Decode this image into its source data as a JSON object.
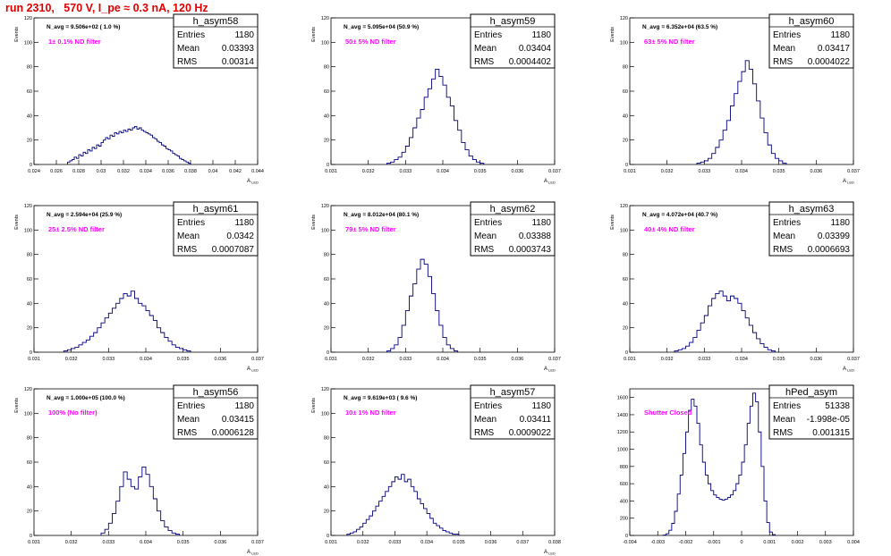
{
  "page_title": "run 2310,   570 V, I_pe ≈ 0.3 nA, 120 Hz",
  "stats_labels": {
    "entries": "Entries",
    "mean": "Mean",
    "rms": "RMS"
  },
  "colors": {
    "title": "#e00000",
    "histogram_line": "#000080",
    "annotation": "#ff00ff",
    "axis": "#000000"
  },
  "chart_data": [
    {
      "type": "histogram",
      "name": "h_asym58",
      "entries": "1180",
      "mean": "0.03393",
      "rms": "0.00314",
      "n_avg": "N_avg = 9.506e+02 ( 1.0 %)",
      "filter": "1± 0.1% ND filter",
      "ylabel": "Events",
      "xlabel": "A_LED",
      "xlim": [
        0.024,
        0.044
      ],
      "ylim": [
        0,
        120
      ],
      "xticks": [
        0.024,
        0.026,
        0.028,
        0.03,
        0.032,
        0.034,
        0.036,
        0.038,
        0.04,
        0.042,
        0.044
      ],
      "xtick_labels": [
        "0.024",
        "0.026",
        "0.028",
        "0.03",
        "0.032",
        "0.034",
        "0.036",
        "0.038",
        "0.04",
        "0.042",
        "0.044"
      ],
      "yticks": [
        0,
        20,
        40,
        60,
        80,
        100,
        120
      ],
      "bin_edges_start": 0.027,
      "bin_width": 0.0002,
      "counts": [
        2,
        3,
        4,
        6,
        5,
        8,
        7,
        10,
        9,
        12,
        11,
        14,
        13,
        16,
        15,
        18,
        20,
        22,
        21,
        24,
        23,
        26,
        25,
        27,
        26,
        28,
        27,
        29,
        28,
        30,
        31,
        29,
        30,
        28,
        27,
        26,
        25,
        24,
        22,
        21,
        19,
        18,
        16,
        15,
        13,
        12,
        11,
        9,
        8,
        7,
        5,
        4,
        3,
        2,
        1
      ]
    },
    {
      "type": "histogram",
      "name": "h_asym59",
      "entries": "1180",
      "mean": "0.03404",
      "rms": "0.0004402",
      "n_avg": "N_avg = 5.095e+04 (50.9 %)",
      "filter": "50± 5% ND filter",
      "ylabel": "Events",
      "xlabel": "A_LED",
      "xlim": [
        0.031,
        0.037
      ],
      "ylim": [
        0,
        120
      ],
      "xticks": [
        0.031,
        0.032,
        0.033,
        0.034,
        0.035,
        0.036,
        0.037
      ],
      "xtick_labels": [
        "0.031",
        "0.032",
        "0.033",
        "0.034",
        "0.035",
        "0.036",
        "0.037"
      ],
      "yticks": [
        0,
        20,
        40,
        60,
        80,
        100,
        120
      ],
      "bin_edges_start": 0.0325,
      "bin_width": 0.0001,
      "counts": [
        1,
        2,
        4,
        6,
        10,
        15,
        22,
        30,
        38,
        45,
        55,
        62,
        70,
        78,
        72,
        65,
        55,
        48,
        36,
        28,
        18,
        12,
        7,
        4,
        2,
        1
      ]
    },
    {
      "type": "histogram",
      "name": "h_asym60",
      "entries": "1180",
      "mean": "0.03417",
      "rms": "0.0004022",
      "n_avg": "N_avg = 6.352e+04 (63.5 %)",
      "filter": "63± 5% ND filter",
      "ylabel": "Events",
      "xlabel": "A_LED",
      "xlim": [
        0.031,
        0.037
      ],
      "ylim": [
        0,
        120
      ],
      "xticks": [
        0.031,
        0.032,
        0.033,
        0.034,
        0.035,
        0.036,
        0.037
      ],
      "xtick_labels": [
        "0.031",
        "0.032",
        "0.033",
        "0.034",
        "0.035",
        "0.036",
        "0.037"
      ],
      "yticks": [
        0,
        20,
        40,
        60,
        80,
        100,
        120
      ],
      "bin_edges_start": 0.0328,
      "bin_width": 0.0001,
      "counts": [
        1,
        2,
        3,
        5,
        9,
        14,
        20,
        28,
        36,
        48,
        58,
        68,
        76,
        85,
        78,
        66,
        52,
        38,
        26,
        16,
        9,
        5,
        3,
        1
      ]
    },
    {
      "type": "histogram",
      "name": "h_asym61",
      "entries": "1180",
      "mean": "0.0342",
      "rms": "0.0007087",
      "n_avg": "N_avg = 2.594e+04 (25.9 %)",
      "filter": "25± 2.5% ND filter",
      "ylabel": "Events",
      "xlabel": "A_LED",
      "xlim": [
        0.031,
        0.037
      ],
      "ylim": [
        0,
        120
      ],
      "xticks": [
        0.031,
        0.032,
        0.033,
        0.034,
        0.035,
        0.036,
        0.037
      ],
      "xtick_labels": [
        "0.031",
        "0.032",
        "0.033",
        "0.034",
        "0.035",
        "0.036",
        "0.037"
      ],
      "yticks": [
        0,
        20,
        40,
        60,
        80,
        100,
        120
      ],
      "bin_edges_start": 0.0318,
      "bin_width": 0.0001,
      "counts": [
        1,
        2,
        3,
        4,
        6,
        8,
        10,
        13,
        16,
        20,
        24,
        28,
        32,
        36,
        40,
        44,
        48,
        46,
        50,
        44,
        40,
        38,
        34,
        30,
        26,
        20,
        16,
        12,
        9,
        6,
        4,
        3,
        2,
        1
      ]
    },
    {
      "type": "histogram",
      "name": "h_asym62",
      "entries": "1180",
      "mean": "0.03388",
      "rms": "0.0003743",
      "n_avg": "N_avg = 8.012e+04 (80.1 %)",
      "filter": "79± 5% ND filter",
      "ylabel": "Events",
      "xlabel": "A_LED",
      "xlim": [
        0.031,
        0.037
      ],
      "ylim": [
        0,
        120
      ],
      "xticks": [
        0.031,
        0.032,
        0.033,
        0.034,
        0.035,
        0.036,
        0.037
      ],
      "xtick_labels": [
        "0.031",
        "0.032",
        "0.033",
        "0.034",
        "0.035",
        "0.036",
        "0.037"
      ],
      "yticks": [
        0,
        20,
        40,
        60,
        80,
        100,
        120
      ],
      "bin_edges_start": 0.0325,
      "bin_width": 0.0001,
      "counts": [
        1,
        3,
        6,
        12,
        22,
        34,
        46,
        56,
        68,
        76,
        72,
        62,
        48,
        34,
        22,
        12,
        6,
        3,
        1
      ]
    },
    {
      "type": "histogram",
      "name": "h_asym63",
      "entries": "1180",
      "mean": "0.03399",
      "rms": "0.0006693",
      "n_avg": "N_avg = 4.072e+04 (40.7 %)",
      "filter": "40± 4% ND filter",
      "ylabel": "Events",
      "xlabel": "A_LED",
      "xlim": [
        0.031,
        0.037
      ],
      "ylim": [
        0,
        120
      ],
      "xticks": [
        0.031,
        0.032,
        0.033,
        0.034,
        0.035,
        0.036,
        0.037
      ],
      "xtick_labels": [
        "0.031",
        "0.032",
        "0.033",
        "0.034",
        "0.035",
        "0.036",
        "0.037"
      ],
      "yticks": [
        0,
        20,
        40,
        60,
        80,
        100,
        120
      ],
      "bin_edges_start": 0.0322,
      "bin_width": 0.0001,
      "counts": [
        1,
        2,
        3,
        5,
        8,
        12,
        18,
        24,
        30,
        38,
        44,
        48,
        50,
        46,
        42,
        46,
        44,
        40,
        34,
        28,
        22,
        16,
        11,
        7,
        4,
        2,
        1
      ]
    },
    {
      "type": "histogram",
      "name": "h_asym56",
      "entries": "1180",
      "mean": "0.03415",
      "rms": "0.0006128",
      "n_avg": "N_avg = 1.000e+05 (100.0 %)",
      "filter": "100% (No filter)",
      "ylabel": "Events",
      "xlabel": "A_LED",
      "xlim": [
        0.031,
        0.037
      ],
      "ylim": [
        0,
        120
      ],
      "xticks": [
        0.031,
        0.032,
        0.033,
        0.034,
        0.035,
        0.036,
        0.037
      ],
      "xtick_labels": [
        "0.031",
        "0.032",
        "0.033",
        "0.034",
        "0.035",
        "0.036",
        "0.037"
      ],
      "yticks": [
        0,
        20,
        40,
        60,
        80,
        100,
        120
      ],
      "bin_edges_start": 0.0328,
      "bin_width": 0.0001,
      "counts": [
        2,
        5,
        10,
        18,
        28,
        40,
        52,
        46,
        40,
        38,
        48,
        56,
        50,
        40,
        30,
        20,
        12,
        7,
        4,
        2,
        1
      ]
    },
    {
      "type": "histogram",
      "name": "h_asym57",
      "entries": "1180",
      "mean": "0.03411",
      "rms": "0.0009022",
      "n_avg": "N_avg = 9.619e+03 ( 9.6 %)",
      "filter": "10± 1% ND filter",
      "ylabel": "Events",
      "xlabel": "A_LED",
      "xlim": [
        0.031,
        0.038
      ],
      "ylim": [
        0,
        120
      ],
      "xticks": [
        0.031,
        0.032,
        0.033,
        0.034,
        0.035,
        0.036,
        0.037,
        0.038
      ],
      "xtick_labels": [
        "0.031",
        "0.032",
        "0.033",
        "0.034",
        "0.035",
        "0.036",
        "0.037",
        "0.038"
      ],
      "yticks": [
        0,
        20,
        40,
        60,
        80,
        100,
        120
      ],
      "bin_edges_start": 0.0315,
      "bin_width": 0.0001,
      "counts": [
        1,
        2,
        3,
        5,
        7,
        10,
        13,
        16,
        20,
        24,
        28,
        32,
        36,
        40,
        44,
        48,
        46,
        50,
        44,
        46,
        40,
        36,
        30,
        26,
        22,
        18,
        14,
        10,
        8,
        6,
        4,
        3,
        2,
        1,
        1
      ]
    },
    {
      "type": "histogram",
      "name": "hPed_asym",
      "entries": "51338",
      "mean": "-1.998e-05",
      "rms": "0.001315",
      "n_avg": "",
      "filter": "Shutter Closed",
      "ylabel": "",
      "xlabel": "",
      "xlim": [
        -0.004,
        0.004
      ],
      "ylim": [
        0,
        1700
      ],
      "xticks": [
        -0.004,
        -0.003,
        -0.002,
        -0.001,
        0,
        0.001,
        0.002,
        0.003,
        0.004
      ],
      "xtick_labels": [
        "-0.004",
        "-0.003",
        "-0.002",
        "-0.001",
        "0",
        "0.001",
        "0.002",
        "0.003",
        "0.004"
      ],
      "yticks": [
        0,
        200,
        400,
        600,
        800,
        1000,
        1200,
        1400,
        1600
      ],
      "bin_edges_start": -0.0028,
      "bin_width": 0.0001,
      "counts": [
        5,
        20,
        60,
        140,
        280,
        480,
        700,
        950,
        1200,
        1450,
        1580,
        1500,
        1300,
        1050,
        850,
        700,
        600,
        520,
        470,
        440,
        420,
        410,
        420,
        440,
        470,
        520,
        600,
        700,
        850,
        1050,
        1300,
        1500,
        1650,
        1550,
        1200,
        800,
        400,
        150,
        40,
        10
      ]
    }
  ]
}
